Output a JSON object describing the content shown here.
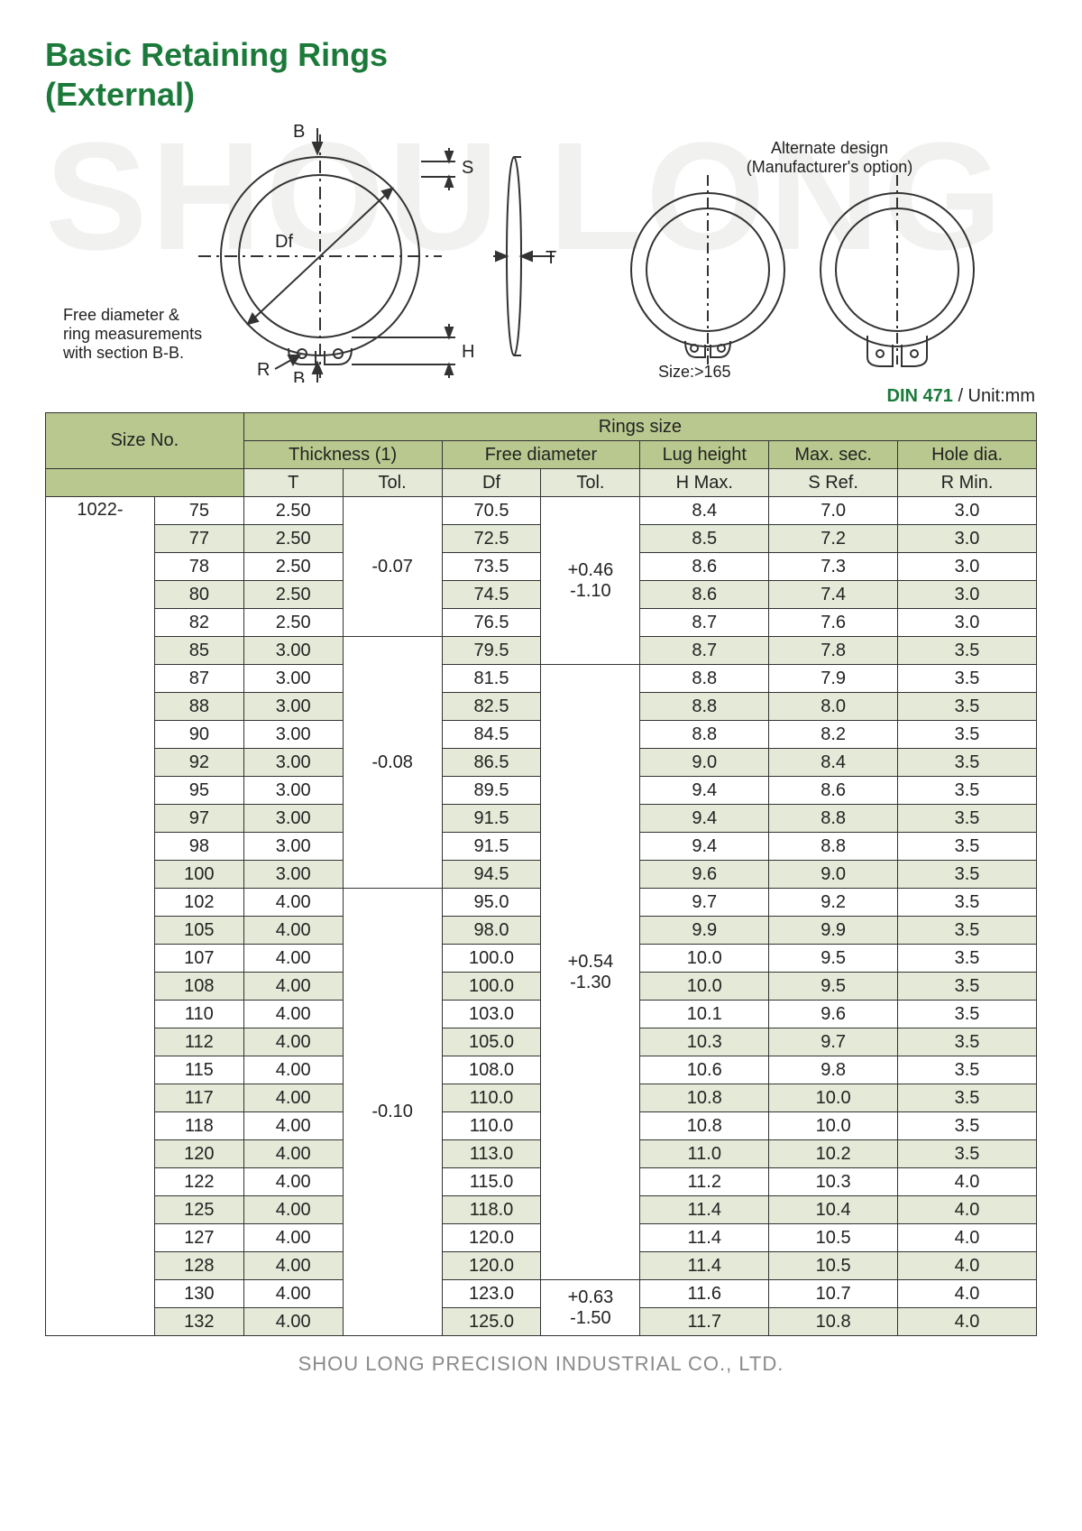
{
  "watermark": "SHOU LONG",
  "title_line1": "Basic Retaining Rings",
  "title_line2": "(External)",
  "diagram": {
    "labels": {
      "B": "B",
      "S": "S",
      "Df": "Df",
      "T": "T",
      "H": "H",
      "R": "R"
    },
    "free_note_l1": "Free diameter &",
    "free_note_l2": "ring measurements",
    "free_note_l3": "with section B-B.",
    "alt_l1": "Alternate design",
    "alt_l2": "(Manufacturer's option)",
    "size_note": "Size:>165",
    "stroke": "#333333",
    "fill": "#ffffff"
  },
  "standard": "DIN 471",
  "unit": "/ Unit:mm",
  "table": {
    "header_bg": "#b9c88f",
    "stripe_bg": "#e4ead7",
    "columns": {
      "size_no": "Size No.",
      "rings_size": "Rings size",
      "thickness": "Thickness (1)",
      "free_dia": "Free diameter",
      "lug": "Lug height",
      "maxsec": "Max. sec.",
      "holedia": "Hole dia.",
      "T": "T",
      "Tol1": "Tol.",
      "Df": "Df",
      "Tol2": "Tol.",
      "Hmax": "H Max.",
      "Sref": "S Ref.",
      "Rmin": "R Min."
    },
    "prefix": "1022-",
    "tol_t": [
      {
        "value": "-0.07",
        "span": 5
      },
      {
        "value": "-0.08",
        "span": 9
      },
      {
        "value": "-0.10",
        "span": 16
      }
    ],
    "tol_df": [
      {
        "upper": "+0.46",
        "lower": "-1.10",
        "span": 6
      },
      {
        "upper": "+0.54",
        "lower": "-1.30",
        "span": 22
      },
      {
        "upper": "+0.63",
        "lower": "-1.50",
        "span": 2
      }
    ],
    "rows": [
      {
        "n": "75",
        "t": "2.50",
        "df": "70.5",
        "h": "8.4",
        "s": "7.0",
        "r": "3.0"
      },
      {
        "n": "77",
        "t": "2.50",
        "df": "72.5",
        "h": "8.5",
        "s": "7.2",
        "r": "3.0"
      },
      {
        "n": "78",
        "t": "2.50",
        "df": "73.5",
        "h": "8.6",
        "s": "7.3",
        "r": "3.0"
      },
      {
        "n": "80",
        "t": "2.50",
        "df": "74.5",
        "h": "8.6",
        "s": "7.4",
        "r": "3.0"
      },
      {
        "n": "82",
        "t": "2.50",
        "df": "76.5",
        "h": "8.7",
        "s": "7.6",
        "r": "3.0"
      },
      {
        "n": "85",
        "t": "3.00",
        "df": "79.5",
        "h": "8.7",
        "s": "7.8",
        "r": "3.5"
      },
      {
        "n": "87",
        "t": "3.00",
        "df": "81.5",
        "h": "8.8",
        "s": "7.9",
        "r": "3.5"
      },
      {
        "n": "88",
        "t": "3.00",
        "df": "82.5",
        "h": "8.8",
        "s": "8.0",
        "r": "3.5"
      },
      {
        "n": "90",
        "t": "3.00",
        "df": "84.5",
        "h": "8.8",
        "s": "8.2",
        "r": "3.5"
      },
      {
        "n": "92",
        "t": "3.00",
        "df": "86.5",
        "h": "9.0",
        "s": "8.4",
        "r": "3.5"
      },
      {
        "n": "95",
        "t": "3.00",
        "df": "89.5",
        "h": "9.4",
        "s": "8.6",
        "r": "3.5"
      },
      {
        "n": "97",
        "t": "3.00",
        "df": "91.5",
        "h": "9.4",
        "s": "8.8",
        "r": "3.5"
      },
      {
        "n": "98",
        "t": "3.00",
        "df": "91.5",
        "h": "9.4",
        "s": "8.8",
        "r": "3.5"
      },
      {
        "n": "100",
        "t": "3.00",
        "df": "94.5",
        "h": "9.6",
        "s": "9.0",
        "r": "3.5"
      },
      {
        "n": "102",
        "t": "4.00",
        "df": "95.0",
        "h": "9.7",
        "s": "9.2",
        "r": "3.5"
      },
      {
        "n": "105",
        "t": "4.00",
        "df": "98.0",
        "h": "9.9",
        "s": "9.9",
        "r": "3.5"
      },
      {
        "n": "107",
        "t": "4.00",
        "df": "100.0",
        "h": "10.0",
        "s": "9.5",
        "r": "3.5"
      },
      {
        "n": "108",
        "t": "4.00",
        "df": "100.0",
        "h": "10.0",
        "s": "9.5",
        "r": "3.5"
      },
      {
        "n": "110",
        "t": "4.00",
        "df": "103.0",
        "h": "10.1",
        "s": "9.6",
        "r": "3.5"
      },
      {
        "n": "112",
        "t": "4.00",
        "df": "105.0",
        "h": "10.3",
        "s": "9.7",
        "r": "3.5"
      },
      {
        "n": "115",
        "t": "4.00",
        "df": "108.0",
        "h": "10.6",
        "s": "9.8",
        "r": "3.5"
      },
      {
        "n": "117",
        "t": "4.00",
        "df": "110.0",
        "h": "10.8",
        "s": "10.0",
        "r": "3.5"
      },
      {
        "n": "118",
        "t": "4.00",
        "df": "110.0",
        "h": "10.8",
        "s": "10.0",
        "r": "3.5"
      },
      {
        "n": "120",
        "t": "4.00",
        "df": "113.0",
        "h": "11.0",
        "s": "10.2",
        "r": "3.5"
      },
      {
        "n": "122",
        "t": "4.00",
        "df": "115.0",
        "h": "11.2",
        "s": "10.3",
        "r": "4.0"
      },
      {
        "n": "125",
        "t": "4.00",
        "df": "118.0",
        "h": "11.4",
        "s": "10.4",
        "r": "4.0"
      },
      {
        "n": "127",
        "t": "4.00",
        "df": "120.0",
        "h": "11.4",
        "s": "10.5",
        "r": "4.0"
      },
      {
        "n": "128",
        "t": "4.00",
        "df": "120.0",
        "h": "11.4",
        "s": "10.5",
        "r": "4.0"
      },
      {
        "n": "130",
        "t": "4.00",
        "df": "123.0",
        "h": "11.6",
        "s": "10.7",
        "r": "4.0"
      },
      {
        "n": "132",
        "t": "4.00",
        "df": "125.0",
        "h": "11.7",
        "s": "10.8",
        "r": "4.0"
      }
    ]
  },
  "footer": "SHOU LONG PRECISION INDUSTRIAL CO., LTD."
}
